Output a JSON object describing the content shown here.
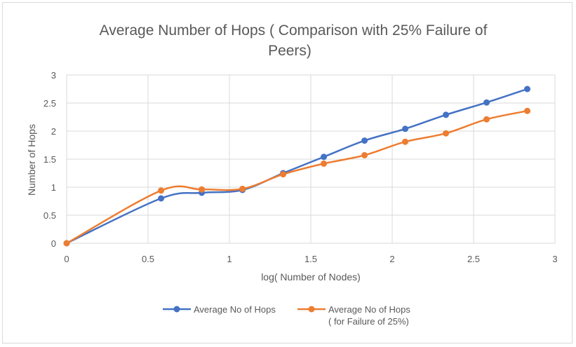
{
  "chart_data": {
    "type": "line",
    "title": "Average Number of Hops ( Comparison with 25% Failure of Peers)",
    "xlabel": "log( Number of Nodes)",
    "ylabel": "Number of Hops",
    "xlim": [
      0,
      3
    ],
    "ylim": [
      0,
      3
    ],
    "x_ticks": [
      "0",
      "0.5",
      "1",
      "1.5",
      "2",
      "2.5",
      "3"
    ],
    "y_ticks": [
      "0",
      "0.5",
      "1",
      "1.5",
      "2",
      "2.5",
      "3"
    ],
    "grid": true,
    "legend_position": "bottom",
    "series": [
      {
        "name": "Average No of Hops",
        "color": "#4472c4",
        "x": [
          0,
          0.58,
          0.83,
          1.08,
          1.33,
          1.58,
          1.83,
          2.08,
          2.33,
          2.58,
          2.83
        ],
        "y": [
          0,
          0.8,
          0.9,
          0.95,
          1.25,
          1.54,
          1.83,
          2.04,
          2.29,
          2.51,
          2.75
        ]
      },
      {
        "name": "Average No of Hops ( for Failure of 25%)",
        "color": "#ed7d31",
        "x": [
          0,
          0.58,
          0.83,
          1.08,
          1.33,
          1.58,
          1.83,
          2.08,
          2.33,
          2.58,
          2.83
        ],
        "y": [
          0,
          0.94,
          0.96,
          0.97,
          1.23,
          1.42,
          1.57,
          1.81,
          1.96,
          2.21,
          2.36
        ]
      }
    ]
  }
}
